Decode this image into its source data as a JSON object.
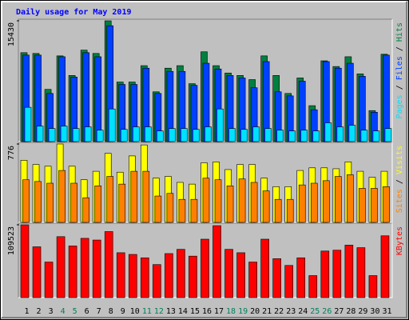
{
  "chart_data": [
    {
      "type": "bar",
      "title": "Daily usage for May 2019",
      "ylim": [
        0,
        15430
      ],
      "yticks": [
        15430
      ],
      "legend_separator": " / ",
      "series": [
        {
          "name": "Hits",
          "color": "#008040",
          "values": [
            11360,
            11260,
            6670,
            10950,
            8450,
            11680,
            11260,
            15430,
            7610,
            7610,
            9700,
            6360,
            9380,
            9700,
            7400,
            11470,
            9700,
            8760,
            8450,
            7920,
            10950,
            8450,
            6150,
            8130,
            4590,
            10320,
            9590,
            10840,
            8650,
            3960,
            11160
          ]
        },
        {
          "name": "Files",
          "color": "#0040ff",
          "values": [
            11050,
            11050,
            6150,
            10840,
            8240,
            11360,
            10840,
            14800,
            7300,
            7300,
            9380,
            6150,
            8970,
            8970,
            7190,
            10010,
            9280,
            8450,
            8130,
            6880,
            10220,
            6360,
            5840,
            7720,
            4070,
            10220,
            9380,
            10010,
            8340,
            3750,
            11050
          ]
        },
        {
          "name": "Pages",
          "color": "#00e0ff",
          "values": [
            4380,
            1980,
            1670,
            1980,
            1670,
            1880,
            1460,
            4170,
            1560,
            1880,
            1880,
            1360,
            1670,
            1670,
            1560,
            1880,
            4170,
            1670,
            1560,
            1880,
            1670,
            1460,
            1360,
            1460,
            1360,
            2400,
            1880,
            2090,
            1460,
            1360,
            1670
          ]
        }
      ]
    },
    {
      "type": "bar",
      "ylim": [
        0,
        776
      ],
      "yticks": [
        776
      ],
      "legend_separator": " / ",
      "series": [
        {
          "name": "Visits",
          "color": "#ffff00",
          "values": [
            615,
            573,
            556,
            776,
            556,
            422,
            506,
            683,
            497,
            658,
            767,
            438,
            455,
            396,
            379,
            590,
            599,
            523,
            573,
            573,
            438,
            354,
            354,
            514,
            540,
            540,
            531,
            599,
            506,
            447,
            506
          ]
        },
        {
          "name": "Sites",
          "color": "#ff8000",
          "values": [
            422,
            405,
            388,
            514,
            388,
            244,
            362,
            455,
            379,
            506,
            506,
            261,
            287,
            228,
            228,
            438,
            422,
            362,
            430,
            396,
            312,
            228,
            228,
            371,
            388,
            413,
            455,
            472,
            337,
            337,
            354
          ]
        }
      ]
    },
    {
      "type": "bar",
      "ylim": [
        0,
        109523
      ],
      "yticks": [
        109523
      ],
      "categories": [
        "1",
        "2",
        "3",
        "4",
        "5",
        "6",
        "7",
        "8",
        "9",
        "10",
        "11",
        "12",
        "13",
        "14",
        "15",
        "16",
        "17",
        "18",
        "19",
        "20",
        "21",
        "22",
        "23",
        "24",
        "25",
        "26",
        "27",
        "28",
        "29",
        "30",
        "31"
      ],
      "category_colors": [
        "#000000",
        "#000000",
        "#000000",
        "#00805c",
        "#00805c",
        "#000000",
        "#000000",
        "#000000",
        "#000000",
        "#000000",
        "#00805c",
        "#00805c",
        "#000000",
        "#000000",
        "#000000",
        "#000000",
        "#000000",
        "#00805c",
        "#00805c",
        "#000000",
        "#000000",
        "#000000",
        "#000000",
        "#000000",
        "#00805c",
        "#00805c",
        "#000000",
        "#000000",
        "#000000",
        "#000000",
        "#000000"
      ],
      "series": [
        {
          "name": "KBytes",
          "color": "#ff0000",
          "values": [
            109523,
            76410,
            53490,
            91690,
            77680,
            89150,
            86600,
            99330,
            67500,
            64950,
            59860,
            49670,
            66220,
            72590,
            62400,
            87870,
            108250,
            72590,
            67500,
            53490,
            87870,
            58580,
            48390,
            59860,
            33110,
            70040,
            71320,
            78960,
            75140,
            33110,
            92970
          ]
        }
      ]
    }
  ]
}
